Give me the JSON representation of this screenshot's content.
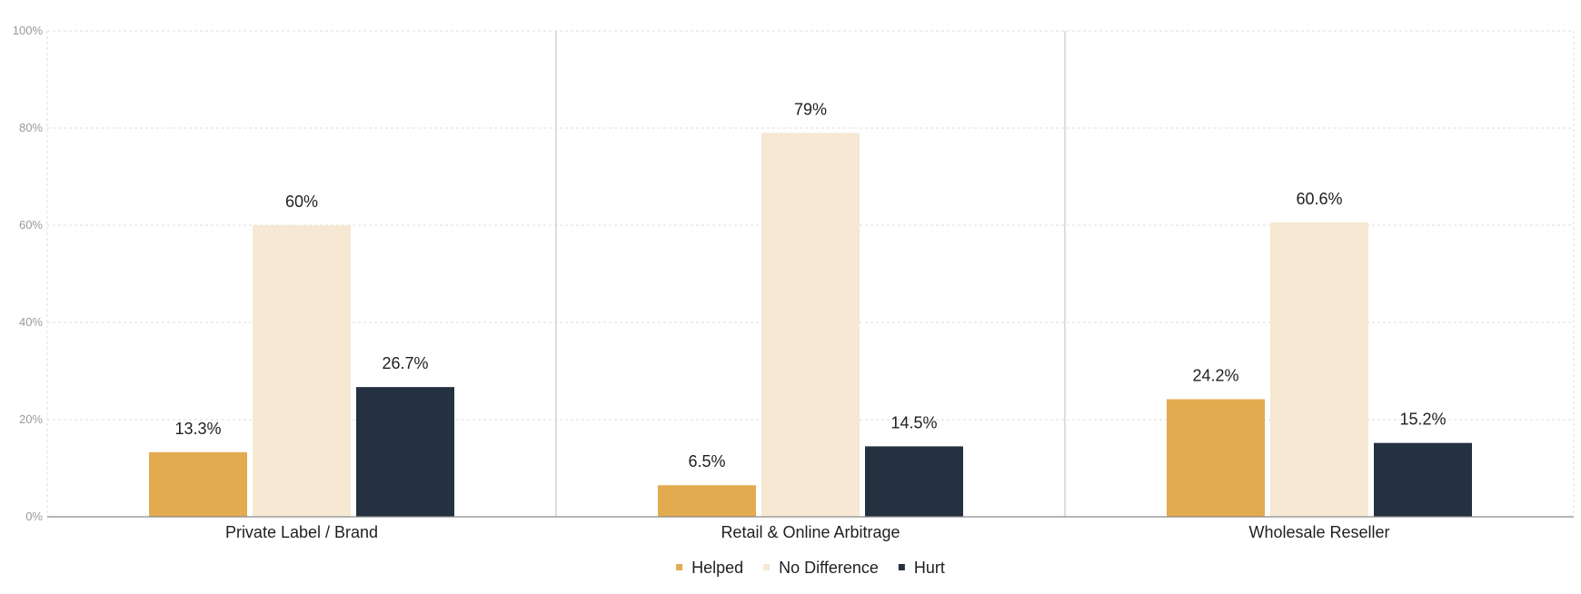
{
  "chart_data": {
    "type": "bar",
    "categories": [
      "Private Label / Brand",
      "Retail & Online Arbitrage",
      "Wholesale Reseller"
    ],
    "series": [
      {
        "name": "Helped",
        "values": [
          13.3,
          6.5,
          24.2
        ],
        "labels": [
          "13.3%",
          "6.5%",
          "24.2%"
        ],
        "color": "#E3AB50"
      },
      {
        "name": "No Difference",
        "values": [
          60,
          79,
          60.6
        ],
        "labels": [
          "60%",
          "79%",
          "60.6%"
        ],
        "color": "#F6E8D3"
      },
      {
        "name": "Hurt",
        "values": [
          26.7,
          14.5,
          15.2
        ],
        "labels": [
          "26.7%",
          "14.5%",
          "15.2%"
        ],
        "color": "#253040"
      }
    ],
    "ylim": [
      0,
      100
    ],
    "yticks": [
      0,
      20,
      40,
      60,
      80,
      100
    ],
    "ytick_labels": [
      "0%",
      "20%",
      "40%",
      "60%",
      "80%",
      "100%"
    ],
    "grid": true,
    "legend_position": "bottom-center"
  }
}
